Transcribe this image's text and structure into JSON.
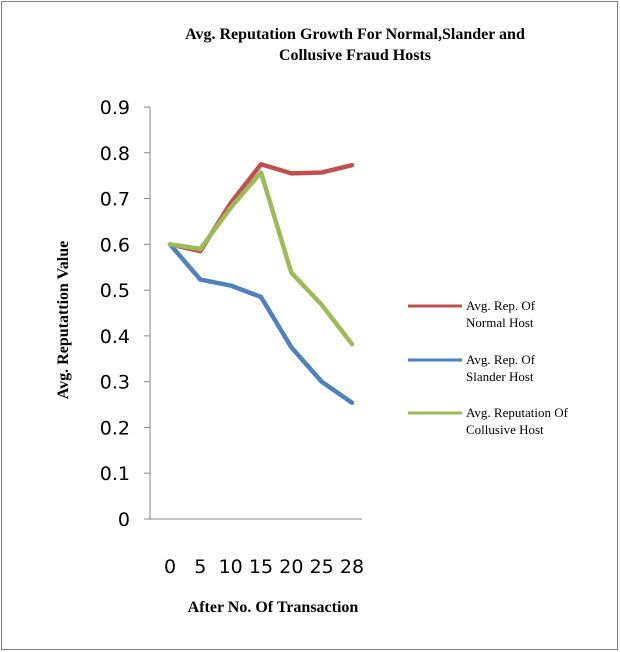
{
  "chart_data": {
    "type": "line",
    "title_line1": "Avg. Reputation Growth For Normal,Slander  and",
    "title_line2": "Collusive Fraud Hosts",
    "xlabel": "After No. Of Transaction",
    "ylabel": "Avg. Reputattion Value",
    "categories": [
      "0",
      "5",
      "10",
      "15",
      "20",
      "25",
      "28"
    ],
    "ylim": [
      0,
      0.9
    ],
    "yticks": [
      "0",
      "0.1",
      "0.2",
      "0.3",
      "0.4",
      "0.5",
      "0.6",
      "0.7",
      "0.8",
      "0.9"
    ],
    "grid": false,
    "legend_position": "right",
    "series": [
      {
        "name_line1": "Avg. Rep. Of",
        "name_line2": "Normal Host",
        "color": "#c0504d",
        "values": [
          0.6,
          0.585,
          0.69,
          0.775,
          0.755,
          0.757,
          0.773
        ]
      },
      {
        "name_line1": "Avg. Rep. Of",
        "name_line2": "Slander Host",
        "color": "#4f81bd",
        "values": [
          0.6,
          0.523,
          0.51,
          0.485,
          0.375,
          0.3,
          0.254
        ]
      },
      {
        "name_line1": "Avg. Reputation Of",
        "name_line2": "Collusive Host",
        "color": "#9bbb59",
        "values": [
          0.6,
          0.59,
          0.68,
          0.757,
          0.538,
          0.468,
          0.382
        ]
      }
    ]
  }
}
